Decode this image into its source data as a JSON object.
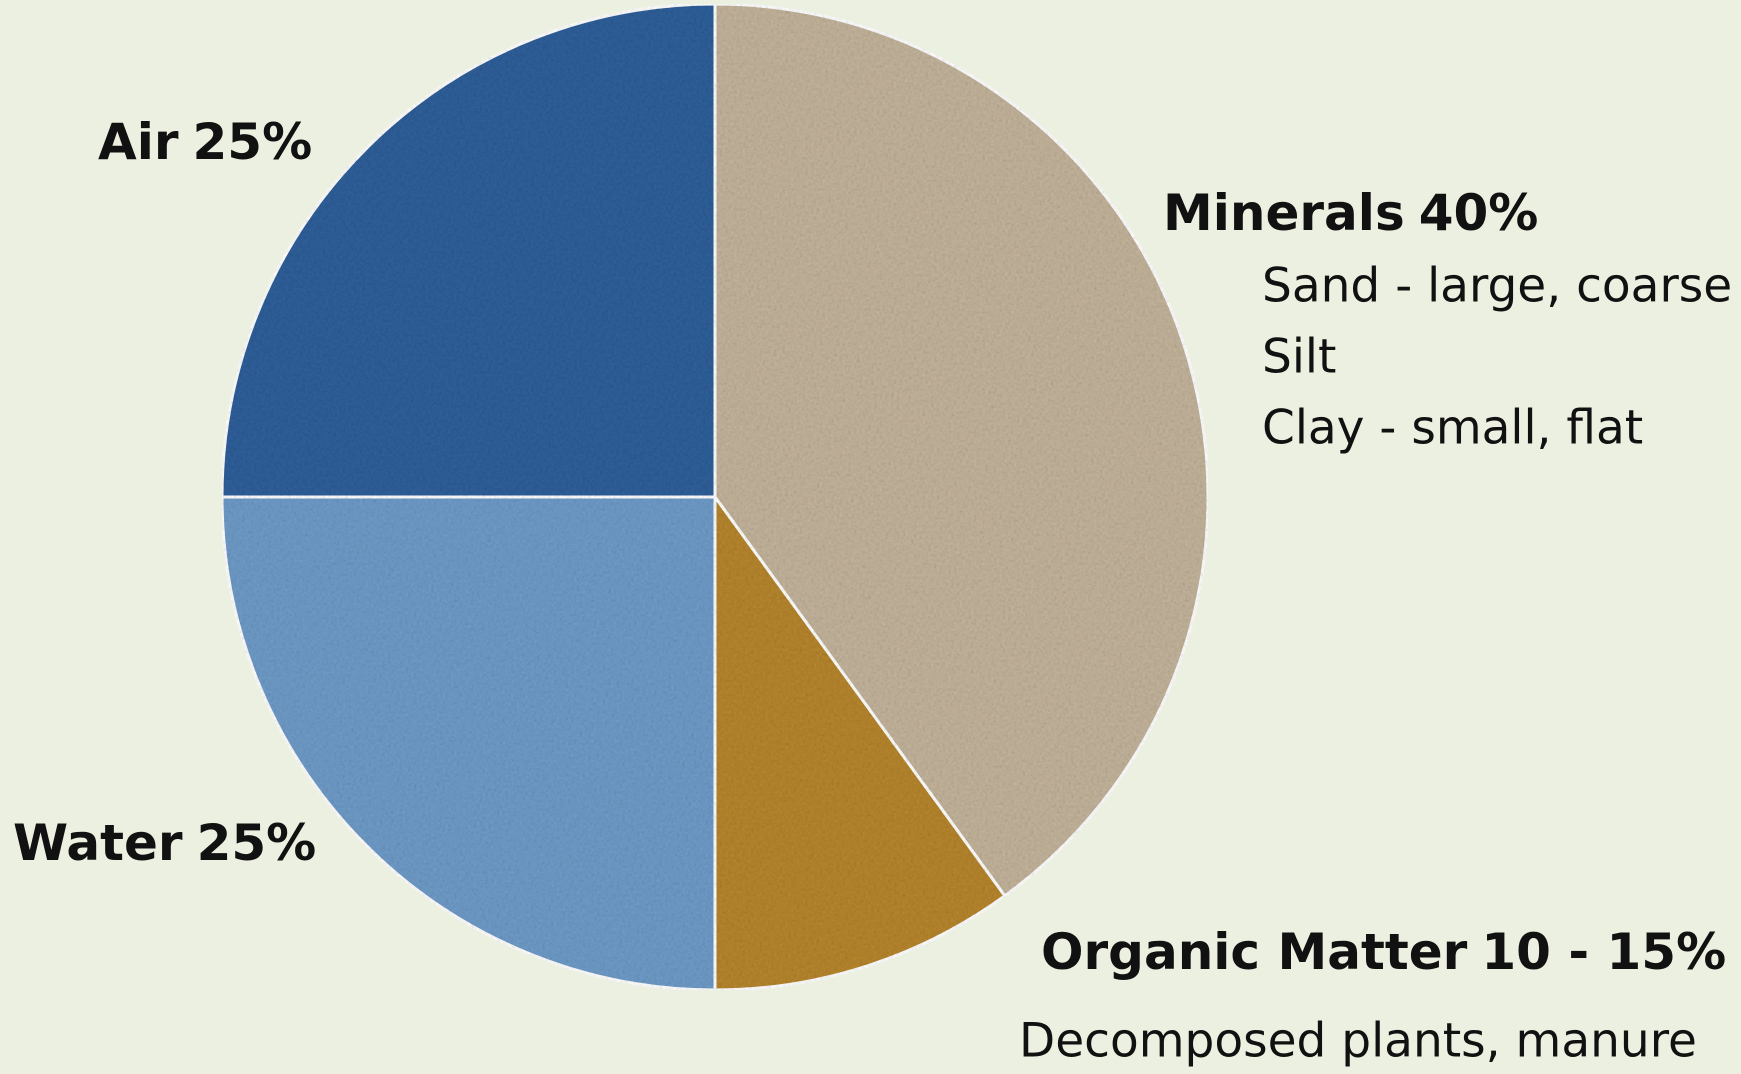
{
  "chart_data": {
    "type": "pie",
    "categories": [
      "Minerals",
      "Organic Matter",
      "Water",
      "Air"
    ],
    "values": [
      40,
      10,
      25,
      25
    ],
    "value_labels": [
      "40%",
      "10 - 15%",
      "25%",
      "25%"
    ],
    "colors": [
      "#c4b49c",
      "#b7862e",
      "#6f9cc9",
      "#2f5f9a"
    ],
    "details": [
      [
        "Sand - large, coarse",
        "Silt",
        "Clay - small, flat"
      ],
      [
        "Decomposed plants, manure"
      ],
      [],
      []
    ]
  }
}
